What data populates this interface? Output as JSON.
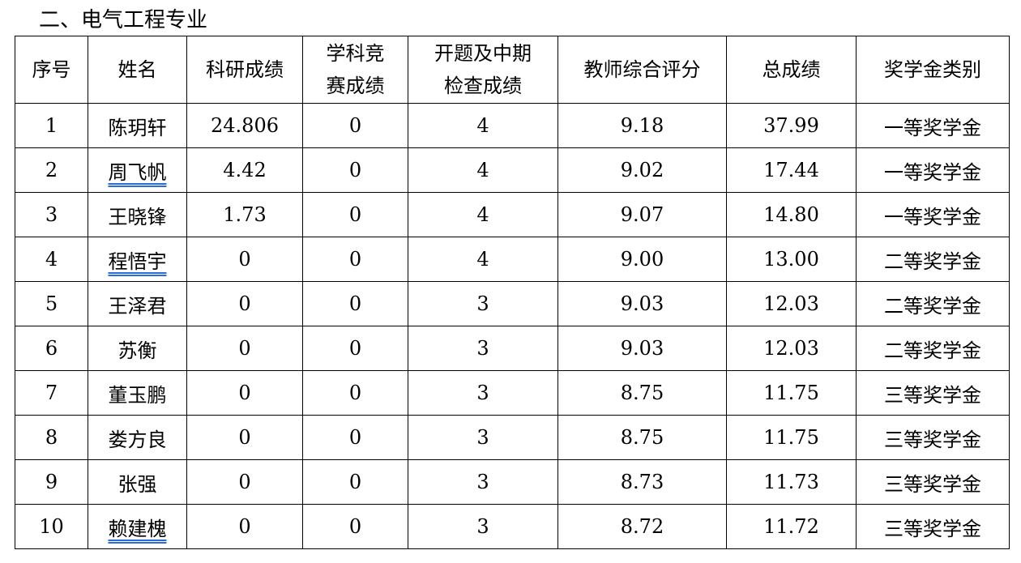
{
  "title": "二、电气工程专业",
  "headers": [
    "序号",
    "姓名",
    "科研成绩",
    "学科竞\n赛成绩",
    "开题及中期\n检查成绩",
    "教师综合评分",
    "总成绩",
    "奖学金类别"
  ],
  "rows": [
    [
      "1",
      "陈玥轩",
      "24.806",
      "0",
      "4",
      "9.18",
      "37.99",
      "一等奖学金"
    ],
    [
      "2",
      "周飞帆",
      "4.42",
      "0",
      "4",
      "9.02",
      "17.44",
      "一等奖学金"
    ],
    [
      "3",
      "王晓锋",
      "1.73",
      "0",
      "4",
      "9.07",
      "14.80",
      "一等奖学金"
    ],
    [
      "4",
      "程悟宇",
      "0",
      "0",
      "4",
      "9.00",
      "13.00",
      "二等奖学金"
    ],
    [
      "5",
      "王泽君",
      "0",
      "0",
      "3",
      "9.03",
      "12.03",
      "二等奖学金"
    ],
    [
      "6",
      "苏衡",
      "0",
      "0",
      "3",
      "9.03",
      "12.03",
      "二等奖学金"
    ],
    [
      "7",
      "董玉鹏",
      "0",
      "0",
      "3",
      "8.75",
      "11.75",
      "三等奖学金"
    ],
    [
      "8",
      "娄方良",
      "0",
      "0",
      "3",
      "8.75",
      "11.75",
      "三等奖学金"
    ],
    [
      "9",
      "张强",
      "0",
      "0",
      "3",
      "8.73",
      "11.73",
      "三等奖学金"
    ],
    [
      "10",
      "赖建槐",
      "0",
      "0",
      "3",
      "8.72",
      "11.72",
      "三等奖学金"
    ]
  ],
  "spellcheck_flagged_names": [
    "周飞帆",
    "程悟宇",
    "赖建槐"
  ]
}
